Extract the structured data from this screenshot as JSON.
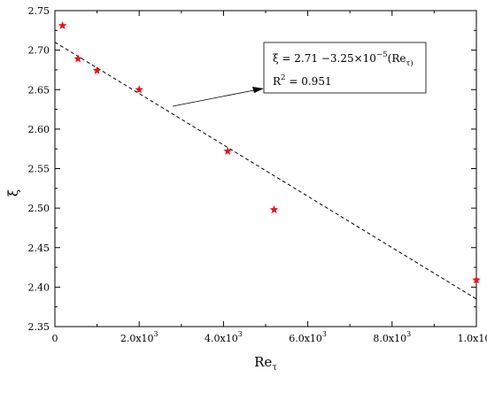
{
  "chart_data": {
    "type": "scatter",
    "title": "",
    "xlabel": "Re_τ",
    "ylabel": "ξ",
    "xlim": [
      0,
      10000
    ],
    "ylim": [
      2.35,
      2.75
    ],
    "x_ticks": [
      0,
      2000,
      4000,
      6000,
      8000,
      10000
    ],
    "x_tick_labels": [
      "0",
      "2.0x10^3",
      "4.0x10^3",
      "6.0x10^3",
      "8.0x10^3",
      "1.0x10^4"
    ],
    "y_ticks": [
      2.35,
      2.4,
      2.45,
      2.5,
      2.55,
      2.6,
      2.65,
      2.7,
      2.75
    ],
    "y_tick_labels": [
      "2.35",
      "2.40",
      "2.45",
      "2.50",
      "2.55",
      "2.60",
      "2.65",
      "2.70",
      "2.75"
    ],
    "grid": false,
    "series": [
      {
        "marker": "star",
        "color": "#e8141c",
        "x": [
          180,
          550,
          1000,
          2000,
          4100,
          5200,
          10000
        ],
        "y": [
          2.731,
          2.689,
          2.674,
          2.65,
          2.572,
          2.498,
          2.409
        ]
      }
    ],
    "fit_line": {
      "style": "dashed",
      "color": "#000000",
      "intercept": 2.71,
      "slope": -3.25e-05,
      "x_range": [
        0,
        10000
      ]
    },
    "annotation": {
      "equation": "ξ = 2.71 −3.25×10^−5(Re_τ)",
      "r_squared": "R^2 = 0.951",
      "placement": "upper-right, arrow to fit line"
    }
  }
}
